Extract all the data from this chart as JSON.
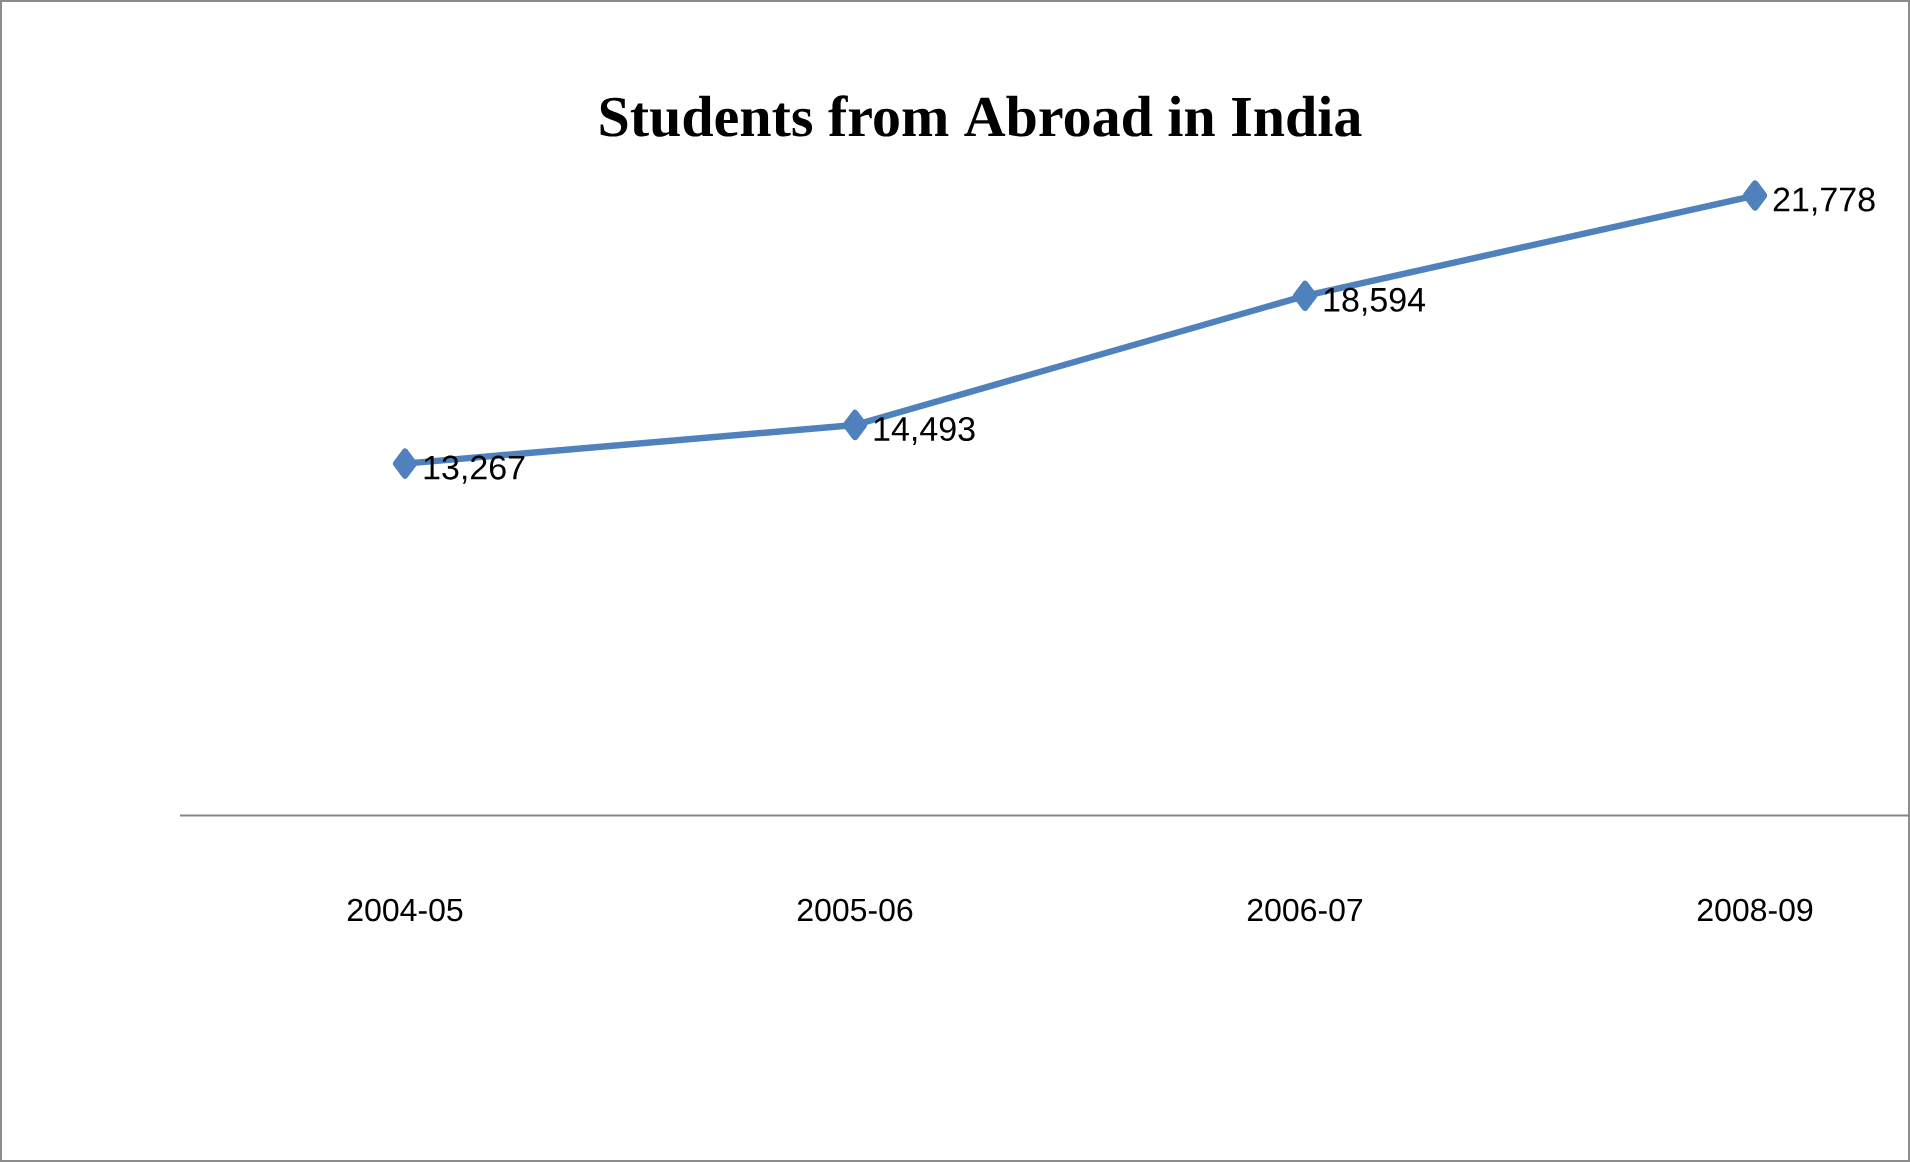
{
  "chart_data": {
    "type": "line",
    "title": "Students from Abroad in India",
    "categories": [
      "2004-05",
      "2005-06",
      "2006-07",
      "2008-09"
    ],
    "values": [
      13267,
      14493,
      18594,
      21778
    ],
    "value_labels": [
      "13,267",
      "14,493",
      "18,594",
      "21,778"
    ],
    "color": "#4f81bd",
    "marker": "diamond",
    "line_style": "solid"
  }
}
